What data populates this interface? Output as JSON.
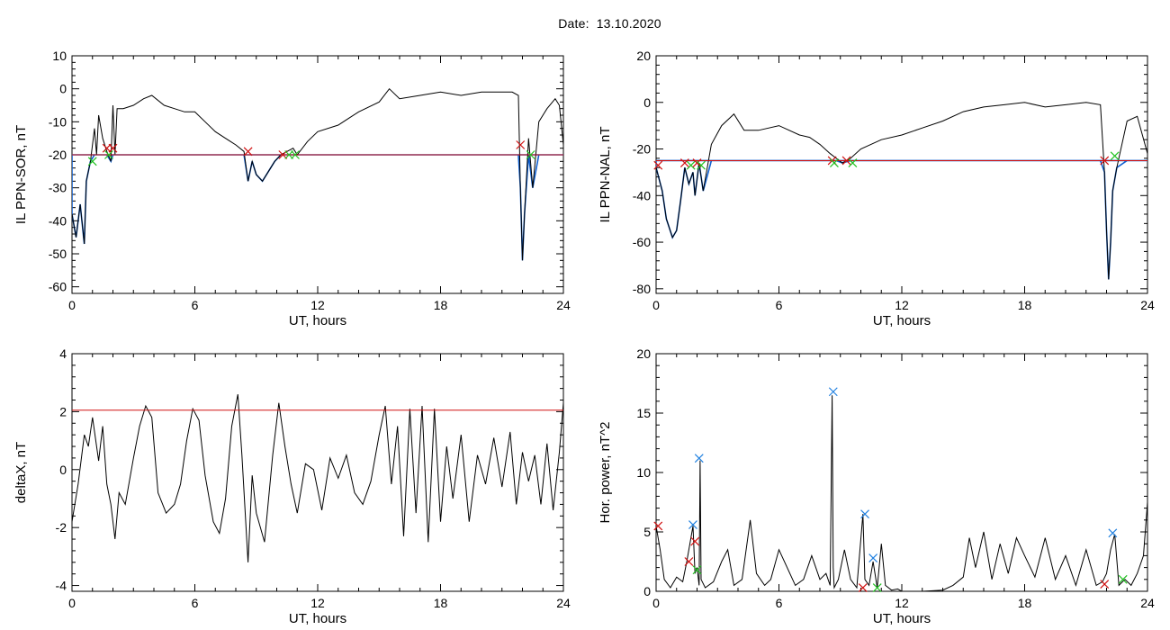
{
  "figure": {
    "date_label": "Date:",
    "date_value": "13.10.2020"
  },
  "colors": {
    "trace": "#000000",
    "threshold": "#d01010",
    "fill": "#1060d0",
    "marker_red": "#d01010",
    "marker_green": "#20c020",
    "marker_blue": "#2080e0"
  },
  "chart_data": [
    {
      "id": "sor",
      "type": "line",
      "xlabel": "UT, hours",
      "ylabel": "IL PPN-SOR, nT",
      "xlim": [
        0,
        24
      ],
      "ylim": [
        -62,
        10
      ],
      "xticks": [
        0,
        6,
        12,
        18,
        24
      ],
      "yticks": [
        10,
        0,
        -10,
        -20,
        -30,
        -40,
        -50,
        -60
      ],
      "threshold": -20,
      "x": [
        0,
        0.2,
        0.4,
        0.6,
        0.7,
        0.9,
        1.1,
        1.2,
        1.3,
        1.5,
        1.7,
        1.9,
        2.0,
        2.1,
        2.2,
        2.5,
        3.0,
        3.5,
        3.9,
        4.5,
        5.0,
        5.5,
        6.0,
        6.5,
        7.0,
        7.5,
        8.0,
        8.4,
        8.6,
        8.8,
        9.0,
        9.3,
        9.6,
        9.9,
        10.2,
        10.5,
        10.8,
        11.0,
        11.5,
        12.0,
        13.0,
        14.0,
        15.0,
        15.5,
        16.0,
        17.0,
        18.0,
        19.0,
        20.0,
        21.0,
        21.5,
        21.8,
        21.9,
        22.0,
        22.1,
        22.3,
        22.5,
        22.8,
        23.2,
        23.6,
        23.8,
        24.0
      ],
      "y": [
        -38,
        -45,
        -35,
        -47,
        -28,
        -22,
        -12,
        -20,
        -8,
        -15,
        -19,
        -22,
        -5,
        -20,
        -6,
        -6,
        -5,
        -3,
        -2,
        -5,
        -6,
        -7,
        -7,
        -10,
        -13,
        -15,
        -17,
        -19,
        -28,
        -22,
        -26,
        -28,
        -25,
        -22,
        -20,
        -19,
        -18,
        -20,
        -16,
        -13,
        -11,
        -7,
        -4,
        0,
        -3,
        -2,
        -1,
        -2,
        -1,
        -1,
        -1,
        -2,
        -30,
        -52,
        -38,
        -15,
        -30,
        -10,
        -6,
        -3,
        -5,
        -17
      ],
      "markers": [
        {
          "x": 1.0,
          "y": -22,
          "c": "green"
        },
        {
          "x": 1.7,
          "y": -18,
          "c": "red"
        },
        {
          "x": 1.8,
          "y": -20,
          "c": "green"
        },
        {
          "x": 2.0,
          "y": -18,
          "c": "red"
        },
        {
          "x": 8.6,
          "y": -19,
          "c": "red"
        },
        {
          "x": 10.3,
          "y": -20,
          "c": "red"
        },
        {
          "x": 10.6,
          "y": -20,
          "c": "green"
        },
        {
          "x": 10.9,
          "y": -20,
          "c": "green"
        },
        {
          "x": 21.9,
          "y": -17,
          "c": "red"
        },
        {
          "x": 22.4,
          "y": -20,
          "c": "green"
        }
      ]
    },
    {
      "id": "nal",
      "type": "line",
      "xlabel": "UT, hours",
      "ylabel": "IL PPN-NAL, nT",
      "xlim": [
        0,
        24
      ],
      "ylim": [
        -82,
        20
      ],
      "xticks": [
        0,
        6,
        12,
        18,
        24
      ],
      "yticks": [
        20,
        0,
        -20,
        -40,
        -60,
        -80
      ],
      "threshold": -25,
      "x": [
        0,
        0.3,
        0.5,
        0.8,
        1.0,
        1.2,
        1.4,
        1.6,
        1.8,
        1.9,
        2.1,
        2.3,
        2.7,
        3.2,
        3.8,
        4.3,
        5.0,
        6.0,
        7.0,
        7.5,
        8.0,
        8.5,
        8.8,
        9.1,
        9.5,
        10.0,
        11.0,
        12.0,
        13.0,
        14.0,
        15.0,
        16.0,
        17.0,
        18.0,
        19.0,
        20.0,
        21.0,
        21.7,
        21.9,
        22.0,
        22.1,
        22.2,
        22.3,
        22.5,
        23.0,
        23.5,
        24.0
      ],
      "y": [
        -28,
        -38,
        -50,
        -58,
        -55,
        -42,
        -28,
        -35,
        -30,
        -40,
        -26,
        -38,
        -18,
        -10,
        -5,
        -12,
        -12,
        -10,
        -14,
        -15,
        -18,
        -22,
        -24,
        -26,
        -24,
        -20,
        -16,
        -14,
        -11,
        -8,
        -4,
        -2,
        -1,
        0,
        -2,
        -1,
        0,
        -1,
        -30,
        -55,
        -76,
        -60,
        -38,
        -28,
        -8,
        -6,
        -22
      ],
      "markers": [
        {
          "x": 0.1,
          "y": -27,
          "c": "red"
        },
        {
          "x": 1.4,
          "y": -26,
          "c": "red"
        },
        {
          "x": 1.7,
          "y": -27,
          "c": "green"
        },
        {
          "x": 2.0,
          "y": -26,
          "c": "red"
        },
        {
          "x": 2.2,
          "y": -27,
          "c": "green"
        },
        {
          "x": 8.6,
          "y": -25,
          "c": "red"
        },
        {
          "x": 8.7,
          "y": -26,
          "c": "green"
        },
        {
          "x": 9.3,
          "y": -25,
          "c": "red"
        },
        {
          "x": 9.6,
          "y": -26,
          "c": "green"
        },
        {
          "x": 21.9,
          "y": -25,
          "c": "red"
        },
        {
          "x": 22.4,
          "y": -23,
          "c": "green"
        }
      ]
    },
    {
      "id": "deltax",
      "type": "line",
      "xlabel": "UT, hours",
      "ylabel": "deltaX, nT",
      "xlim": [
        0,
        24
      ],
      "ylim": [
        -4.2,
        4
      ],
      "xticks": [
        0,
        6,
        12,
        18,
        24
      ],
      "yticks": [
        4,
        2,
        0,
        -2,
        -4
      ],
      "threshold": 2.05,
      "x": [
        0,
        0.3,
        0.6,
        0.8,
        1.0,
        1.3,
        1.5,
        1.7,
        1.9,
        2.1,
        2.3,
        2.6,
        3.0,
        3.3,
        3.6,
        3.9,
        4.2,
        4.6,
        5.0,
        5.3,
        5.6,
        5.9,
        6.2,
        6.5,
        6.9,
        7.2,
        7.5,
        7.8,
        8.1,
        8.3,
        8.6,
        8.8,
        9.0,
        9.4,
        9.8,
        10.1,
        10.4,
        10.7,
        11.0,
        11.4,
        11.8,
        12.2,
        12.6,
        13.0,
        13.4,
        13.8,
        14.2,
        14.6,
        15.0,
        15.3,
        15.6,
        15.9,
        16.2,
        16.5,
        16.8,
        17.1,
        17.4,
        17.7,
        18.0,
        18.3,
        18.6,
        19.0,
        19.4,
        19.8,
        20.2,
        20.6,
        21.0,
        21.4,
        21.7,
        22.0,
        22.3,
        22.6,
        22.9,
        23.2,
        23.5,
        23.8,
        24.0
      ],
      "y": [
        -1.8,
        -0.5,
        1.2,
        0.8,
        1.8,
        0.3,
        1.5,
        -0.5,
        -1.2,
        -2.4,
        -0.8,
        -1.2,
        0.4,
        1.5,
        2.2,
        1.8,
        -0.8,
        -1.5,
        -1.2,
        -0.5,
        1.0,
        2.1,
        1.7,
        -0.2,
        -1.8,
        -2.2,
        -1.0,
        1.5,
        2.6,
        0.5,
        -3.2,
        -0.2,
        -1.5,
        -2.5,
        0.5,
        2.3,
        0.8,
        -0.5,
        -1.5,
        0.2,
        0.0,
        -1.4,
        0.4,
        -0.3,
        0.5,
        -0.8,
        -1.2,
        -0.4,
        1.2,
        2.2,
        -0.5,
        1.5,
        -2.3,
        2.1,
        -1.5,
        2.2,
        -2.5,
        2.1,
        -1.8,
        0.8,
        -1.0,
        1.2,
        -1.8,
        0.5,
        -0.5,
        1.1,
        -0.6,
        1.3,
        -1.2,
        0.6,
        -0.4,
        0.5,
        -1.2,
        0.9,
        -1.4,
        0.6,
        2.3
      ]
    },
    {
      "id": "power",
      "type": "line",
      "xlabel": "UT, hours",
      "ylabel": "Hor. power, nT^2",
      "xlim": [
        0,
        24
      ],
      "ylim": [
        0,
        20
      ],
      "xticks": [
        0,
        6,
        12,
        18,
        24
      ],
      "yticks": [
        20,
        15,
        10,
        5,
        0
      ],
      "x": [
        0,
        0.2,
        0.4,
        0.7,
        1.0,
        1.3,
        1.5,
        1.7,
        1.8,
        1.9,
        2.0,
        2.1,
        2.15,
        2.2,
        2.4,
        2.8,
        3.2,
        3.5,
        3.8,
        4.2,
        4.6,
        4.9,
        5.3,
        5.6,
        6.0,
        6.4,
        6.8,
        7.2,
        7.6,
        8.0,
        8.3,
        8.5,
        8.6,
        8.65,
        8.7,
        8.9,
        9.2,
        9.5,
        9.8,
        10.1,
        10.2,
        10.4,
        10.6,
        10.8,
        11.0,
        11.2,
        11.5,
        11.8,
        12.0,
        13.0,
        14.0,
        14.5,
        15.0,
        15.3,
        15.6,
        16.0,
        16.4,
        16.8,
        17.2,
        17.6,
        18.0,
        18.5,
        19.0,
        19.5,
        20.0,
        20.5,
        21.0,
        21.5,
        21.8,
        22.0,
        22.2,
        22.4,
        22.6,
        22.9,
        23.2,
        23.5,
        23.8,
        24.0
      ],
      "y": [
        5.5,
        3.5,
        1.0,
        0.3,
        1.2,
        0.8,
        2.5,
        4.5,
        5.5,
        1.5,
        2.0,
        0.5,
        11.0,
        1.0,
        0.3,
        0.8,
        2.5,
        3.5,
        0.5,
        1.0,
        6.0,
        1.5,
        0.5,
        1.0,
        3.5,
        2.0,
        0.5,
        1.0,
        3.0,
        1.0,
        1.5,
        0.5,
        16.5,
        2.0,
        0.3,
        1.0,
        3.5,
        1.0,
        0.3,
        6.5,
        1.0,
        0.5,
        2.5,
        0.3,
        4.0,
        0.5,
        0.1,
        0.2,
        0.0,
        0.0,
        0.1,
        0.5,
        1.2,
        4.5,
        2.0,
        5.0,
        1.0,
        4.0,
        1.5,
        4.5,
        3.0,
        1.2,
        4.5,
        1.0,
        3.0,
        0.5,
        3.5,
        0.5,
        0.8,
        1.5,
        3.5,
        4.8,
        0.5,
        1.0,
        0.5,
        1.5,
        3.0,
        7.5
      ],
      "markers": [
        {
          "x": 0.1,
          "y": 5.5,
          "c": "red"
        },
        {
          "x": 1.8,
          "y": 5.6,
          "c": "blue"
        },
        {
          "x": 2.1,
          "y": 11.2,
          "c": "blue"
        },
        {
          "x": 1.6,
          "y": 2.5,
          "c": "red"
        },
        {
          "x": 1.9,
          "y": 4.2,
          "c": "red"
        },
        {
          "x": 2.0,
          "y": 1.8,
          "c": "green"
        },
        {
          "x": 8.65,
          "y": 16.8,
          "c": "blue"
        },
        {
          "x": 10.2,
          "y": 6.5,
          "c": "blue"
        },
        {
          "x": 10.6,
          "y": 2.8,
          "c": "blue"
        },
        {
          "x": 10.1,
          "y": 0.3,
          "c": "red"
        },
        {
          "x": 10.8,
          "y": 0.3,
          "c": "green"
        },
        {
          "x": 22.3,
          "y": 4.9,
          "c": "blue"
        },
        {
          "x": 21.9,
          "y": 0.6,
          "c": "red"
        },
        {
          "x": 22.8,
          "y": 1.0,
          "c": "green"
        }
      ]
    }
  ]
}
